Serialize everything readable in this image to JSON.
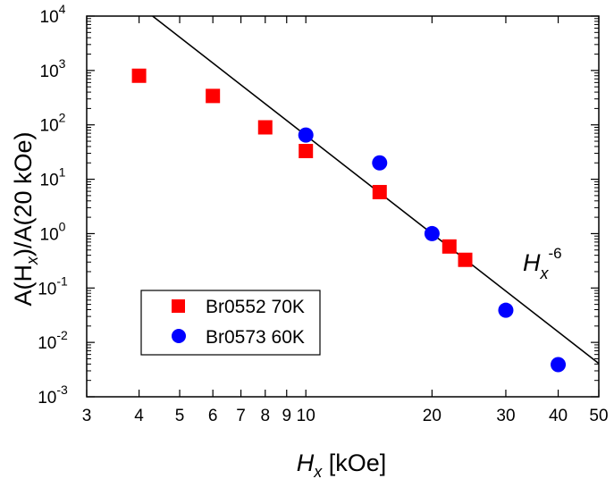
{
  "chart_data": {
    "type": "scatter",
    "xscale": "log",
    "yscale": "log",
    "xlim": [
      3,
      50
    ],
    "ylim": [
      0.001,
      10000
    ],
    "xlabel": {
      "main": "H",
      "sub": "x",
      "unit": " [kOe]"
    },
    "ylabel": {
      "p1": "A(H",
      "sub": "x",
      "p2": ")/A(20 kOe)"
    },
    "x_ticks": [
      {
        "value": 3,
        "label": "3"
      },
      {
        "value": 4,
        "label": "4"
      },
      {
        "value": 5,
        "label": "5"
      },
      {
        "value": 6,
        "label": "6"
      },
      {
        "value": 7,
        "label": "7"
      },
      {
        "value": 8,
        "label": "8"
      },
      {
        "value": 9,
        "label": "9"
      },
      {
        "value": 10,
        "label": "10"
      },
      {
        "value": 20,
        "label": "20"
      },
      {
        "value": 30,
        "label": "30"
      },
      {
        "value": 40,
        "label": "40"
      },
      {
        "value": 50,
        "label": "50"
      }
    ],
    "y_ticks": [
      {
        "value": 0.001,
        "base": "10",
        "exp": "-3"
      },
      {
        "value": 0.01,
        "base": "10",
        "exp": "-2"
      },
      {
        "value": 0.1,
        "base": "10",
        "exp": "-1"
      },
      {
        "value": 1,
        "base": "10",
        "exp": "0"
      },
      {
        "value": 10,
        "base": "10",
        "exp": "1"
      },
      {
        "value": 100,
        "base": "10",
        "exp": "2"
      },
      {
        "value": 1000,
        "base": "10",
        "exp": "3"
      },
      {
        "value": 10000,
        "base": "10",
        "exp": "4"
      }
    ],
    "series": [
      {
        "name": "Br0552 70K",
        "marker": "square",
        "color": "#ff0000",
        "x": [
          4,
          6,
          8,
          10,
          15,
          22,
          24
        ],
        "y": [
          800,
          340,
          90,
          33,
          5.8,
          0.58,
          0.33
        ]
      },
      {
        "name": "Br0573 60K",
        "marker": "circle",
        "color": "#0000ff",
        "x": [
          10,
          15,
          20,
          30,
          40
        ],
        "y": [
          65,
          20,
          1.0,
          0.039,
          0.0039
        ]
      }
    ],
    "fit_line": {
      "exponent": -6,
      "x_ref": 20,
      "y_ref": 1.0,
      "x_range": [
        3,
        50
      ],
      "color": "#000000"
    },
    "annotation": {
      "main": "H",
      "sub": "x",
      "sup": "-6"
    },
    "legend_position": "bottom-left"
  }
}
